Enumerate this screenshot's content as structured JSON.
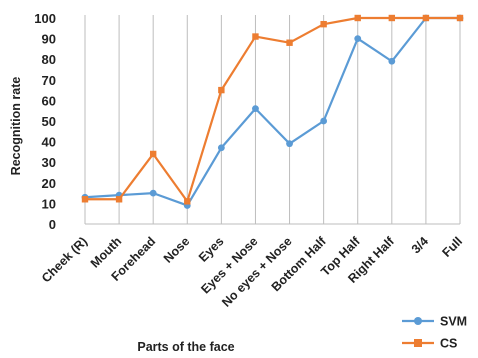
{
  "chart_data": {
    "type": "line",
    "categories": [
      "Cheek (R)",
      "Mouth",
      "Forehead",
      "Nose",
      "Eyes",
      "Eyes + Nose",
      "No eyes + Nose",
      "Bottom Half",
      "Top Half",
      "Right Half",
      "3/4",
      "Full"
    ],
    "series": [
      {
        "name": "SVM",
        "color": "#5b9bd5",
        "marker": "circle",
        "values": [
          13,
          14,
          15,
          9,
          37,
          56,
          39,
          50,
          90,
          79,
          100,
          100
        ]
      },
      {
        "name": "CS",
        "color": "#ed7d31",
        "marker": "square",
        "values": [
          12,
          12,
          34,
          11,
          65,
          91,
          88,
          97,
          100,
          100,
          100,
          100
        ]
      }
    ],
    "yticks": [
      "0",
      "10",
      "20",
      "30",
      "40",
      "50",
      "60",
      "70",
      "80",
      "90",
      "100"
    ],
    "ylim": [
      0,
      100
    ],
    "xlabel": "Parts of the face",
    "ylabel": "Recognition rate",
    "grid": "vertical",
    "legend": "bottom-right"
  }
}
